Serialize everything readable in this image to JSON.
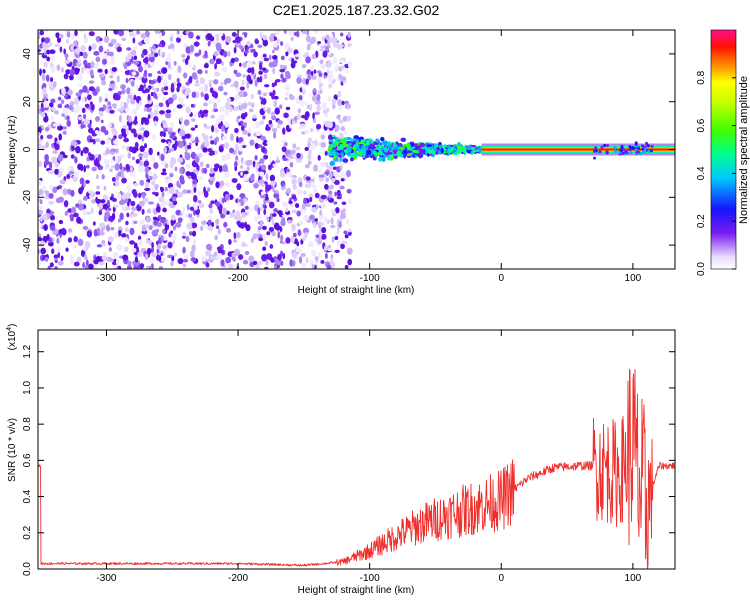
{
  "title": "C2E1.2025.187.23.32.G02",
  "colors": {
    "snr_line": "#f0302c",
    "scatter_purple": "#6a1ae8",
    "scatter_light": "#b79af3",
    "axis": "#000000"
  },
  "chart_data": [
    {
      "type": "heatmap",
      "name": "spectrogram",
      "xlabel": "Height of straight line (km)",
      "ylabel": "Frequency (Hz)",
      "xlim": [
        -352,
        132
      ],
      "ylim": [
        -50,
        50
      ],
      "xticks": [
        -300,
        -200,
        -100,
        0,
        100
      ],
      "xtick_labels": [
        "-300",
        "-200",
        "-100",
        "0",
        "100"
      ],
      "yticks": [
        -40,
        -20,
        0,
        20,
        40
      ],
      "ytick_labels": [
        "-40",
        "-20",
        "0",
        "20",
        "40"
      ],
      "colorbar": {
        "label": "Normalized spectral amplitude",
        "range": [
          0,
          1
        ],
        "ticks": [
          0.0,
          0.2,
          0.4,
          0.6,
          0.8
        ],
        "tick_labels": [
          "0.0",
          "0.2",
          "0.4",
          "0.6",
          "0.8"
        ],
        "colormap": "rainbow"
      },
      "regions": [
        {
          "x_range": [
            -352,
            -115
          ],
          "freq_range": [
            -50,
            50
          ],
          "amplitude": "low (0.0-0.2), scattered"
        },
        {
          "x_range": [
            -130,
            -15
          ],
          "freq_range": [
            -8,
            8
          ],
          "amplitude": "0.2-0.6, dispersed around 0 Hz"
        },
        {
          "x_range": [
            -15,
            132
          ],
          "freq_range": [
            -1,
            1
          ],
          "amplitude": "0.8-1.0, narrow line at 0 Hz"
        }
      ]
    },
    {
      "type": "line",
      "name": "snr",
      "xlabel": "Height of straight line (km)",
      "ylabel": "SNR (10 * v/v)",
      "yscale_label": "(x10^4)",
      "yscale_base": "(x10",
      "yscale_exp": "4",
      "yscale_close": ")",
      "xlim": [
        -352,
        132
      ],
      "ylim": [
        0,
        1.32
      ],
      "xticks": [
        -300,
        -200,
        -100,
        0,
        100
      ],
      "xtick_labels": [
        "-300",
        "-200",
        "-100",
        "0",
        "100"
      ],
      "yticks": [
        0.0,
        0.2,
        0.4,
        0.6,
        0.8,
        1.0,
        1.2
      ],
      "ytick_labels": [
        "0.0",
        "0.2",
        "0.4",
        "0.6",
        "0.8",
        "1.0",
        "1.2"
      ],
      "series": [
        {
          "x": [
            -350,
            -300,
            -250,
            -200,
            -150,
            -120,
            -100,
            -80,
            -60,
            -40,
            -20,
            0,
            20,
            40,
            60,
            70,
            80,
            90,
            100,
            105,
            110,
            120,
            132
          ],
          "y": [
            0.03,
            0.03,
            0.03,
            0.03,
            0.02,
            0.04,
            0.1,
            0.18,
            0.25,
            0.3,
            0.34,
            0.38,
            0.5,
            0.56,
            0.57,
            0.57,
            0.55,
            0.52,
            0.7,
            0.45,
            0.35,
            0.57,
            0.57
          ]
        }
      ]
    }
  ]
}
